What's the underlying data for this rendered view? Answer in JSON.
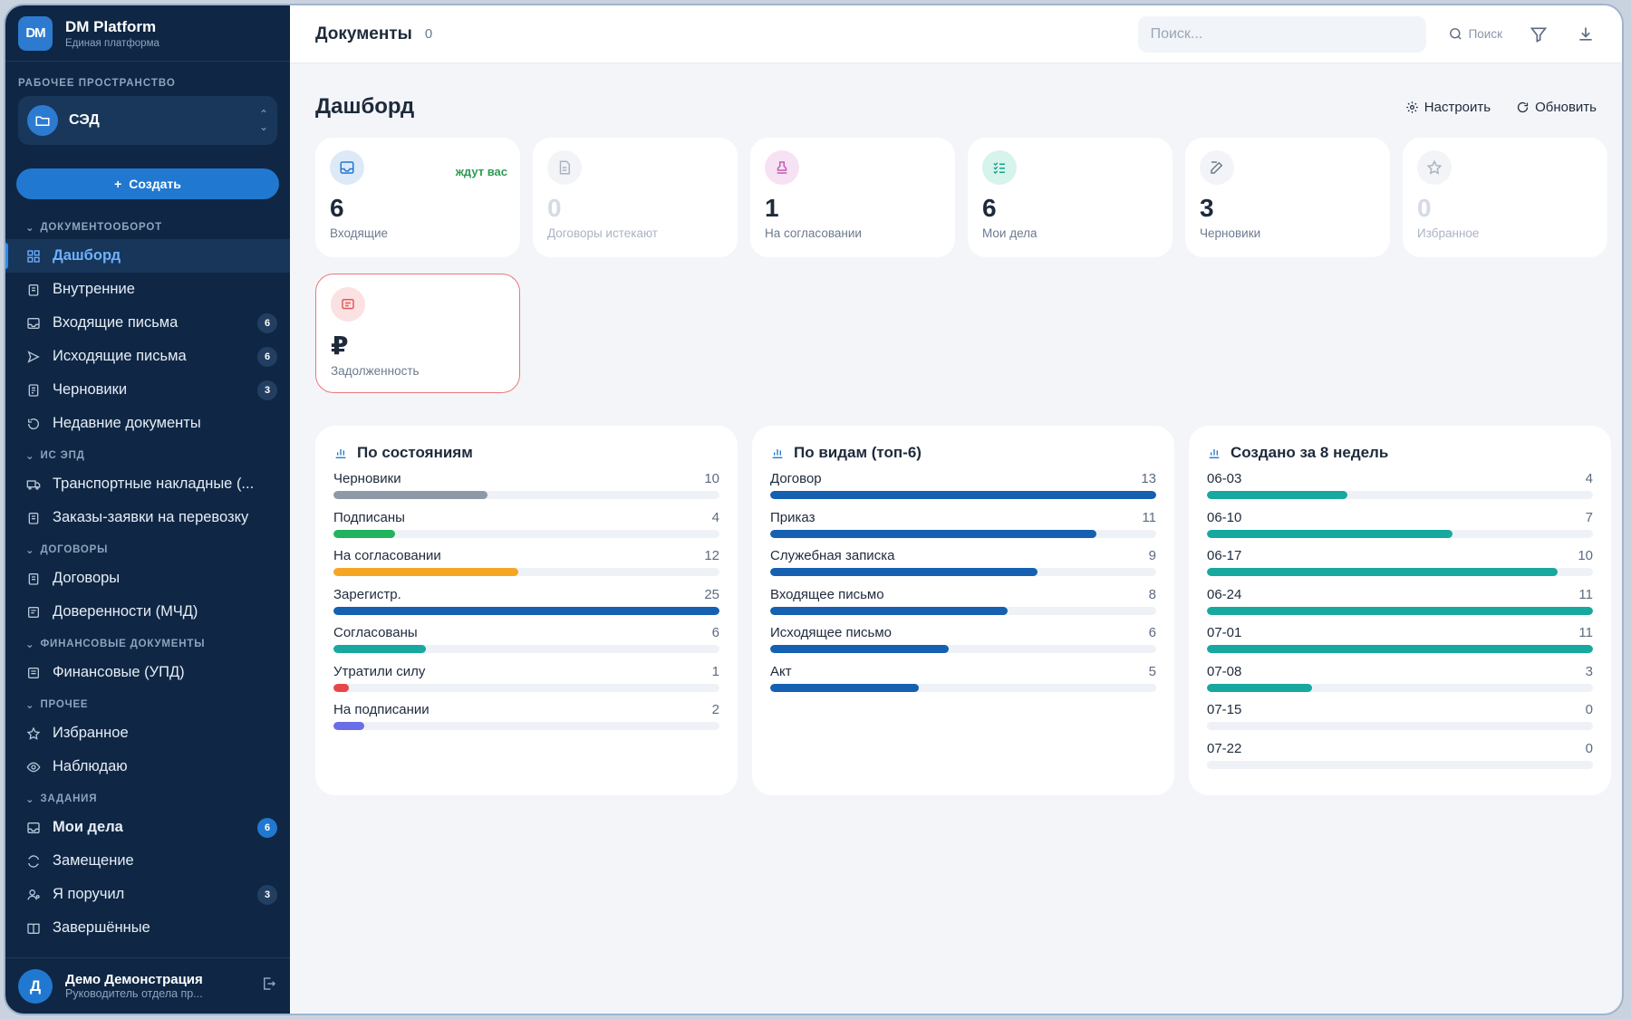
{
  "brand": {
    "logo": "DM",
    "title": "DM Platform",
    "subtitle": "Единая платформа"
  },
  "workspace": {
    "label": "РАБОЧЕЕ ПРОСТРАНСТВО",
    "name": "СЭД"
  },
  "create_label": "Создать",
  "nav": {
    "groups": [
      {
        "label": "ДОКУМЕНТООБОРОТ"
      },
      {
        "label": "ИС ЭПД"
      },
      {
        "label": "ДОГОВОРЫ"
      },
      {
        "label": "ФИНАНСОВЫЕ ДОКУМЕНТЫ"
      },
      {
        "label": "ПРОЧЕЕ"
      },
      {
        "label": "ЗАДАНИЯ"
      }
    ],
    "items": [
      {
        "label": "Дашборд",
        "icon": "grid-icon"
      },
      {
        "label": "Внутренние",
        "icon": "clipboard-icon"
      },
      {
        "label": "Входящие письма",
        "icon": "inbox-icon",
        "badge": "6"
      },
      {
        "label": "Исходящие письма",
        "icon": "send-icon",
        "badge": "6"
      },
      {
        "label": "Черновики",
        "icon": "draft-icon",
        "badge": "3"
      },
      {
        "label": "Недавние документы",
        "icon": "history-icon"
      },
      {
        "label": "Транспортные накладные (...",
        "icon": "truck-icon"
      },
      {
        "label": "Заказы-заявки на перевозку",
        "icon": "clipboard-icon"
      },
      {
        "label": "Договоры",
        "icon": "clipboard-icon"
      },
      {
        "label": "Доверенности (МЧД)",
        "icon": "doc-icon"
      },
      {
        "label": "Финансовые (УПД)",
        "icon": "list-icon"
      },
      {
        "label": "Избранное",
        "icon": "star-icon"
      },
      {
        "label": "Наблюдаю",
        "icon": "eye-icon"
      },
      {
        "label": "Мои дела",
        "icon": "inbox-icon",
        "badge": "6"
      },
      {
        "label": "Замещение",
        "icon": "swap-icon"
      },
      {
        "label": "Я поручил",
        "icon": "user-assign-icon",
        "badge": "3"
      },
      {
        "label": "Завершённые",
        "icon": "book-icon"
      }
    ]
  },
  "user": {
    "initial": "Д",
    "name": "Демо Демонстрация",
    "role": "Руководитель отдела пр..."
  },
  "topbar": {
    "title": "Документы",
    "count": "0",
    "search_placeholder": "Поиск...",
    "search_button": "Поиск"
  },
  "page": {
    "title": "Дашборд",
    "configure_label": "Настроить",
    "refresh_label": "Обновить"
  },
  "stat_cards": [
    {
      "value": "6",
      "label": "Входящие",
      "tag": "ждут вас",
      "icon": "inbox-icon",
      "color": "#2178d0"
    },
    {
      "value": "0",
      "label": "Договоры истекают",
      "icon": "doc-icon",
      "color": "#9aa7b8"
    },
    {
      "value": "1",
      "label": "На согласовании",
      "icon": "stamp-icon",
      "color": "#c05bb8"
    },
    {
      "value": "6",
      "label": "Мои дела",
      "icon": "checklist-icon",
      "color": "#1aa38a"
    },
    {
      "value": "3",
      "label": "Черновики",
      "icon": "edit-icon",
      "color": "#6b7a8e"
    },
    {
      "value": "0",
      "label": "Избранное",
      "icon": "star-icon",
      "color": "#9aa7b8"
    },
    {
      "value": "₽",
      "label": "Задолженность",
      "icon": "message-icon",
      "color": "#e05a5c"
    }
  ],
  "panels": [
    {
      "title": "По состояниям",
      "chart_data": {
        "type": "bar",
        "categories": [
          "Черновики",
          "Подписаны",
          "На согласовании",
          "Зарегистр.",
          "Согласованы",
          "Утратили силу",
          "На подписании"
        ],
        "values": [
          10,
          4,
          12,
          25,
          6,
          1,
          2
        ],
        "colors": [
          "#8e99a8",
          "#22b35e",
          "#f5a623",
          "#1560b0",
          "#17a8a0",
          "#e8474a",
          "#6a6ee8"
        ],
        "max": 25
      }
    },
    {
      "title": "По видам (топ-6)",
      "chart_data": {
        "type": "bar",
        "categories": [
          "Договор",
          "Приказ",
          "Служебная записка",
          "Входящее письмо",
          "Исходящее письмо",
          "Акт"
        ],
        "values": [
          13,
          11,
          9,
          8,
          6,
          5
        ],
        "colors": [
          "#1560b0",
          "#1560b0",
          "#1560b0",
          "#1560b0",
          "#1560b0",
          "#1560b0"
        ],
        "max": 13
      }
    },
    {
      "title": "Создано за 8 недель",
      "chart_data": {
        "type": "bar",
        "categories": [
          "06-03",
          "06-10",
          "06-17",
          "06-24",
          "07-01",
          "07-08",
          "07-15",
          "07-22"
        ],
        "values": [
          4,
          7,
          10,
          11,
          11,
          3,
          0,
          0
        ],
        "colors": [
          "#17a8a0",
          "#17a8a0",
          "#17a8a0",
          "#17a8a0",
          "#17a8a0",
          "#17a8a0",
          "#17a8a0",
          "#17a8a0"
        ],
        "max": 11
      }
    }
  ]
}
